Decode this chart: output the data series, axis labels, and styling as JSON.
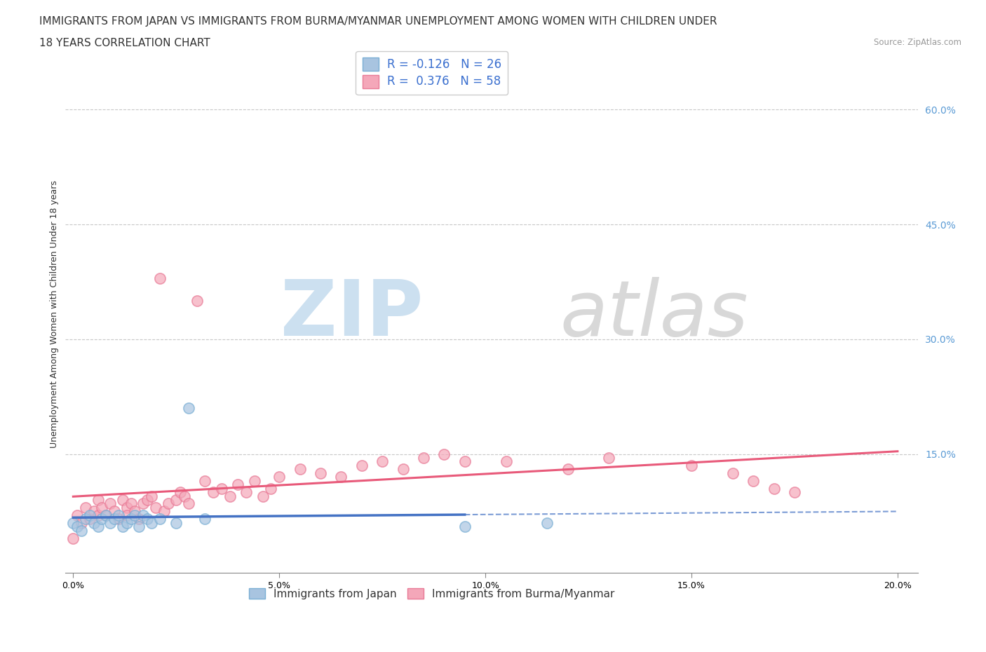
{
  "title_line1": "IMMIGRANTS FROM JAPAN VS IMMIGRANTS FROM BURMA/MYANMAR UNEMPLOYMENT AMONG WOMEN WITH CHILDREN UNDER",
  "title_line2": "18 YEARS CORRELATION CHART",
  "source": "Source: ZipAtlas.com",
  "ylabel": "Unemployment Among Women with Children Under 18 years",
  "x_tick_labels": [
    "0.0%",
    "5.0%",
    "10.0%",
    "15.0%",
    "20.0%"
  ],
  "x_tick_vals": [
    0.0,
    0.05,
    0.1,
    0.15,
    0.2
  ],
  "y_tick_labels": [
    "15.0%",
    "30.0%",
    "45.0%",
    "60.0%"
  ],
  "y_tick_vals": [
    0.15,
    0.3,
    0.45,
    0.6
  ],
  "xlim": [
    -0.002,
    0.205
  ],
  "ylim": [
    -0.005,
    0.67
  ],
  "japan_R": -0.126,
  "japan_N": 26,
  "burma_R": 0.376,
  "burma_N": 58,
  "japan_color": "#a8c4e0",
  "japan_edge_color": "#7aafd4",
  "burma_color": "#f4a7b9",
  "burma_edge_color": "#e87a96",
  "japan_line_color": "#4472c4",
  "burma_line_color": "#e85a7a",
  "japan_scatter_x": [
    0.0,
    0.001,
    0.002,
    0.003,
    0.004,
    0.005,
    0.006,
    0.007,
    0.008,
    0.009,
    0.01,
    0.011,
    0.012,
    0.013,
    0.014,
    0.015,
    0.016,
    0.017,
    0.018,
    0.019,
    0.021,
    0.025,
    0.028,
    0.032,
    0.095,
    0.115
  ],
  "japan_scatter_y": [
    0.06,
    0.055,
    0.05,
    0.065,
    0.07,
    0.06,
    0.055,
    0.065,
    0.07,
    0.06,
    0.065,
    0.07,
    0.055,
    0.06,
    0.065,
    0.07,
    0.055,
    0.07,
    0.065,
    0.06,
    0.065,
    0.06,
    0.21,
    0.065,
    0.055,
    0.06
  ],
  "burma_scatter_x": [
    0.0,
    0.001,
    0.002,
    0.003,
    0.004,
    0.005,
    0.006,
    0.006,
    0.007,
    0.008,
    0.009,
    0.01,
    0.011,
    0.012,
    0.013,
    0.013,
    0.014,
    0.015,
    0.016,
    0.017,
    0.018,
    0.019,
    0.02,
    0.021,
    0.022,
    0.023,
    0.025,
    0.026,
    0.027,
    0.028,
    0.03,
    0.032,
    0.034,
    0.036,
    0.038,
    0.04,
    0.042,
    0.044,
    0.046,
    0.048,
    0.05,
    0.055,
    0.06,
    0.065,
    0.07,
    0.075,
    0.08,
    0.085,
    0.09,
    0.095,
    0.105,
    0.12,
    0.13,
    0.15,
    0.16,
    0.165,
    0.17,
    0.175
  ],
  "burma_scatter_y": [
    0.04,
    0.07,
    0.06,
    0.08,
    0.065,
    0.075,
    0.07,
    0.09,
    0.08,
    0.07,
    0.085,
    0.075,
    0.065,
    0.09,
    0.08,
    0.07,
    0.085,
    0.075,
    0.065,
    0.085,
    0.09,
    0.095,
    0.08,
    0.38,
    0.075,
    0.085,
    0.09,
    0.1,
    0.095,
    0.085,
    0.35,
    0.115,
    0.1,
    0.105,
    0.095,
    0.11,
    0.1,
    0.115,
    0.095,
    0.105,
    0.12,
    0.13,
    0.125,
    0.12,
    0.135,
    0.14,
    0.13,
    0.145,
    0.15,
    0.14,
    0.14,
    0.13,
    0.145,
    0.135,
    0.125,
    0.115,
    0.105,
    0.1
  ],
  "legend_japan_label": "Immigrants from Japan",
  "legend_burma_label": "Immigrants from Burma/Myanmar",
  "background_color": "#ffffff",
  "grid_color": "#c8c8c8",
  "title_fontsize": 11,
  "axis_label_fontsize": 9,
  "tick_fontsize": 9,
  "legend_fontsize": 10,
  "watermark_zip_color": "#cce0f0",
  "watermark_atlas_color": "#d8d8d8"
}
